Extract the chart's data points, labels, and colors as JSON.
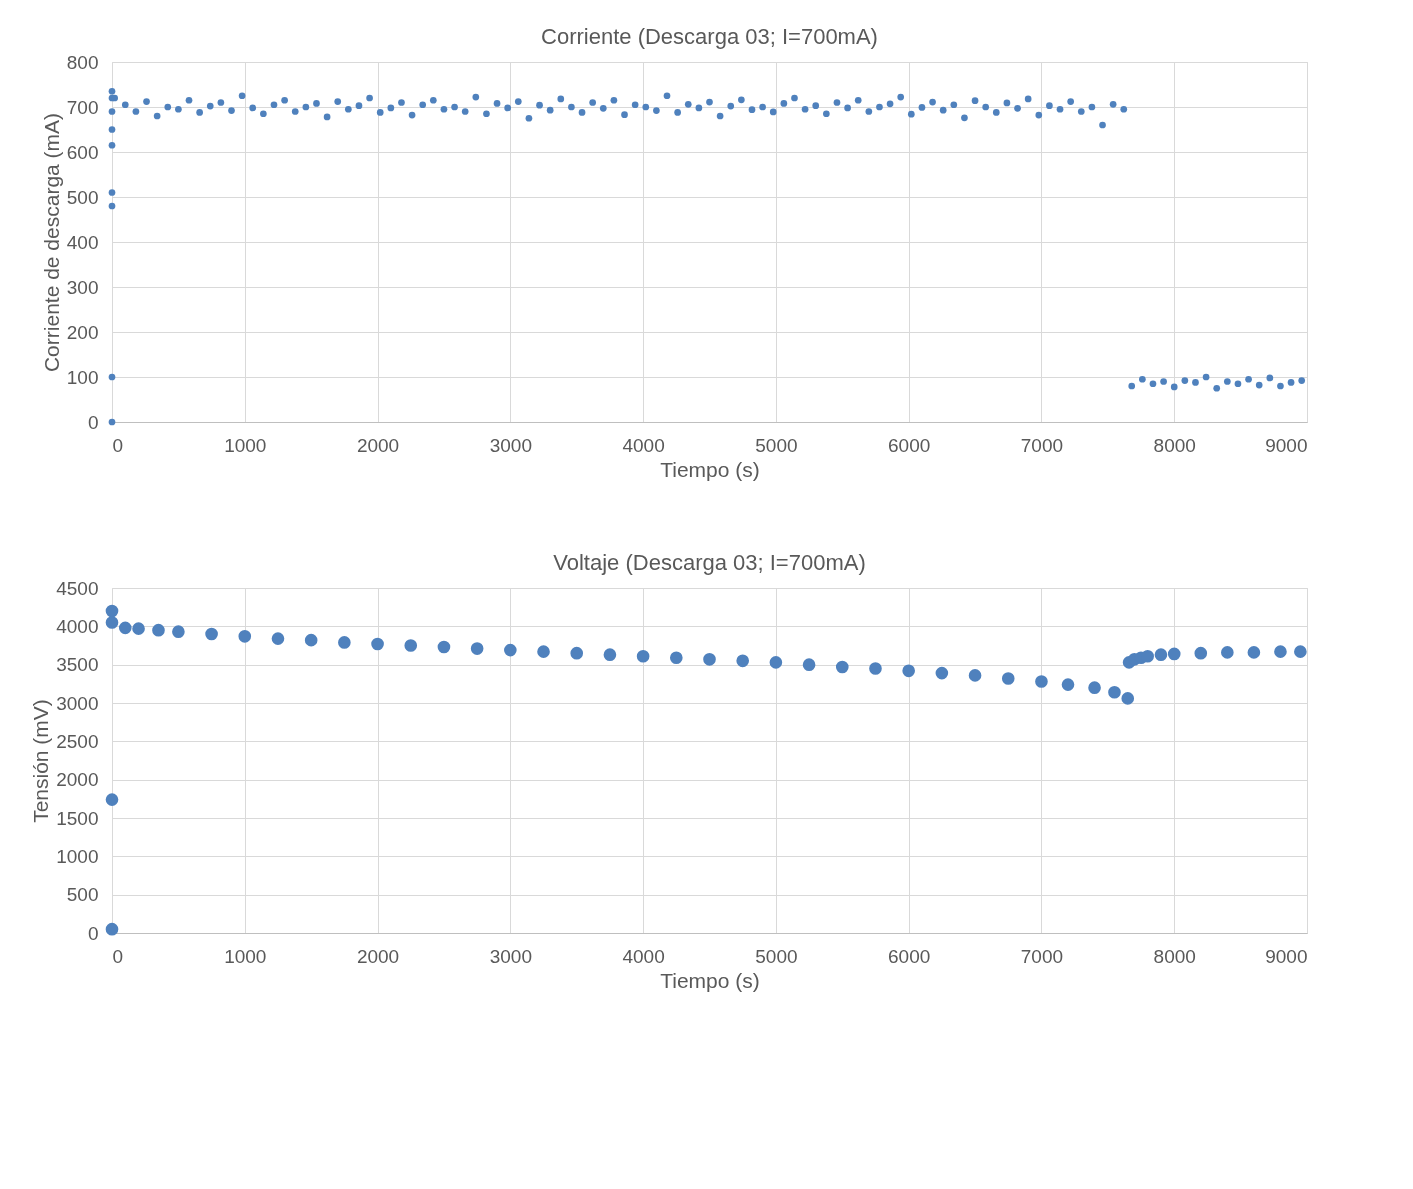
{
  "chart_data": [
    {
      "type": "scatter",
      "title": "Corriente (Descarga 03; I=700mA)",
      "xlabel": "Tiempo (s)",
      "ylabel": "Corriente de descarga (mA)",
      "xlim": [
        0,
        9000
      ],
      "xticks": [
        0,
        1000,
        2000,
        3000,
        4000,
        5000,
        6000,
        7000,
        8000,
        9000
      ],
      "ylim": [
        0,
        800
      ],
      "yticks": [
        0,
        100,
        200,
        300,
        400,
        500,
        600,
        700,
        800
      ],
      "grid": true,
      "marker": "circle",
      "series": [
        {
          "color": "#4f81bd",
          "x": [
            0,
            0,
            0,
            0,
            0,
            0,
            0,
            0,
            0,
            20,
            100,
            180,
            260,
            340,
            420,
            500,
            580,
            660,
            740,
            820,
            900,
            980,
            1060,
            1140,
            1220,
            1300,
            1380,
            1460,
            1540,
            1620,
            1700,
            1780,
            1860,
            1940,
            2020,
            2100,
            2180,
            2260,
            2340,
            2420,
            2500,
            2580,
            2660,
            2740,
            2820,
            2900,
            2980,
            3060,
            3140,
            3220,
            3300,
            3380,
            3460,
            3540,
            3620,
            3700,
            3780,
            3860,
            3940,
            4020,
            4100,
            4180,
            4260,
            4340,
            4420,
            4500,
            4580,
            4660,
            4740,
            4820,
            4900,
            4980,
            5060,
            5140,
            5220,
            5300,
            5380,
            5460,
            5540,
            5620,
            5700,
            5780,
            5860,
            5940,
            6020,
            6100,
            6180,
            6260,
            6340,
            6420,
            6500,
            6580,
            6660,
            6740,
            6820,
            6900,
            6980,
            7060,
            7140,
            7220,
            7300,
            7380,
            7460,
            7540,
            7620,
            7680,
            7760,
            7840,
            7920,
            8000,
            8080,
            8160,
            8240,
            8320,
            8400,
            8480,
            8560,
            8640,
            8720,
            8800,
            8880,
            8960
          ],
          "values": [
            0,
            100,
            480,
            510,
            615,
            650,
            735,
            720,
            690,
            720,
            705,
            690,
            712,
            680,
            700,
            695,
            715,
            688,
            702,
            710,
            692,
            725,
            698,
            685,
            705,
            715,
            690,
            700,
            708,
            678,
            712,
            695,
            703,
            720,
            688,
            698,
            710,
            682,
            705,
            715,
            695,
            700,
            690,
            722,
            685,
            708,
            698,
            712,
            675,
            704,
            693,
            718,
            700,
            688,
            710,
            697,
            715,
            683,
            705,
            700,
            692,
            725,
            688,
            706,
            698,
            711,
            680,
            702,
            716,
            694,
            700,
            689,
            708,
            720,
            695,
            703,
            685,
            710,
            698,
            715,
            690,
            700,
            707,
            722,
            684,
            699,
            711,
            693,
            705,
            676,
            714,
            700,
            688,
            709,
            697,
            718,
            682,
            703,
            695,
            712,
            690,
            700,
            660,
            706,
            695,
            80,
            95,
            85,
            90,
            78,
            92,
            88,
            100,
            75,
            90,
            85,
            95,
            82,
            98,
            80,
            88,
            92
          ]
        }
      ]
    },
    {
      "type": "scatter",
      "title": "Voltaje (Descarga 03; I=700mA)",
      "xlabel": "Tiempo (s)",
      "ylabel": "Tensión (mV)",
      "xlim": [
        0,
        9000
      ],
      "xticks": [
        0,
        1000,
        2000,
        3000,
        4000,
        5000,
        6000,
        7000,
        8000,
        9000
      ],
      "ylim": [
        0,
        4500
      ],
      "yticks": [
        0,
        500,
        1000,
        1500,
        2000,
        2500,
        3000,
        3500,
        4000,
        4500
      ],
      "grid": true,
      "marker": "circle",
      "series": [
        {
          "color": "#4f81bd",
          "x": [
            0,
            0,
            0,
            0,
            100,
            200,
            350,
            500,
            750,
            1000,
            1250,
            1500,
            1750,
            2000,
            2250,
            2500,
            2750,
            3000,
            3250,
            3500,
            3750,
            4000,
            4250,
            4500,
            4750,
            5000,
            5250,
            5500,
            5750,
            6000,
            6250,
            6500,
            6750,
            7000,
            7200,
            7400,
            7550,
            7650,
            7660,
            7700,
            7750,
            7800,
            7900,
            8000,
            8200,
            8400,
            8600,
            8800,
            8950
          ],
          "values": [
            50,
            1740,
            4200,
            4050,
            3980,
            3970,
            3950,
            3930,
            3900,
            3870,
            3840,
            3820,
            3790,
            3770,
            3750,
            3730,
            3710,
            3690,
            3670,
            3650,
            3630,
            3610,
            3590,
            3570,
            3550,
            3530,
            3500,
            3470,
            3450,
            3420,
            3390,
            3360,
            3320,
            3280,
            3240,
            3200,
            3140,
            3060,
            3530,
            3570,
            3590,
            3610,
            3630,
            3640,
            3650,
            3660,
            3660,
            3670,
            3670
          ]
        }
      ]
    }
  ]
}
